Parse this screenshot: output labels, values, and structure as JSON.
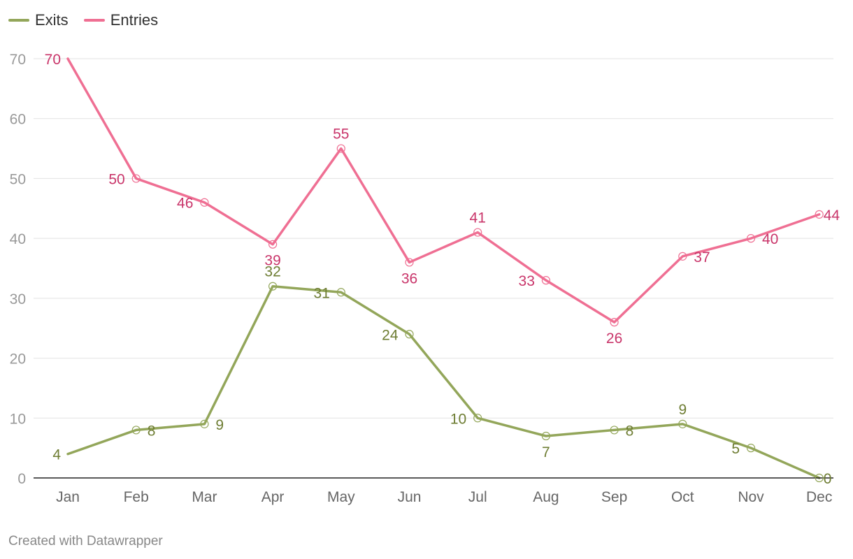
{
  "chart_data": {
    "type": "line",
    "categories": [
      "Jan",
      "Feb",
      "Mar",
      "Apr",
      "May",
      "Jun",
      "Jul",
      "Aug",
      "Sep",
      "Oct",
      "Nov",
      "Dec"
    ],
    "series": [
      {
        "name": "Exits",
        "color": "#93a65a",
        "label_color": "#6e7d33",
        "values": [
          4,
          8,
          9,
          32,
          31,
          24,
          10,
          7,
          8,
          9,
          5,
          0
        ]
      },
      {
        "name": "Entries",
        "color": "#ef6f93",
        "label_color": "#c9356a",
        "values": [
          70,
          50,
          46,
          39,
          55,
          36,
          41,
          33,
          26,
          37,
          40,
          44
        ]
      }
    ],
    "y_ticks": [
      0,
      10,
      20,
      30,
      40,
      50,
      60,
      70
    ],
    "ylim": [
      0,
      70
    ],
    "grid": true,
    "legend_position": "top-left"
  },
  "footer": {
    "credit": "Created with Datawrapper"
  }
}
